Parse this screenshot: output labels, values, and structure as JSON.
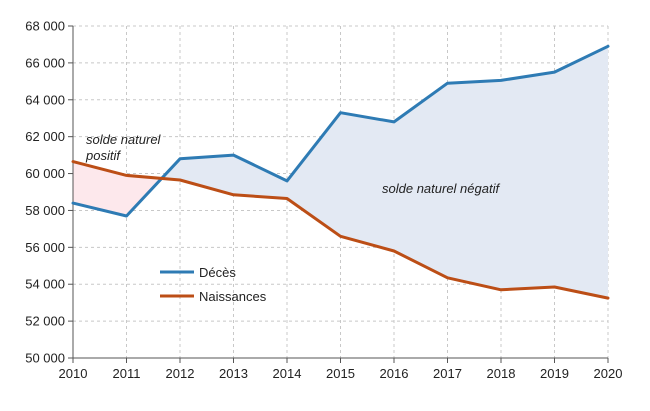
{
  "chart_data": {
    "type": "line",
    "x": [
      2010,
      2011,
      2012,
      2013,
      2014,
      2015,
      2016,
      2017,
      2018,
      2019,
      2020
    ],
    "series": [
      {
        "name": "Décès",
        "color": "#2e7bb4",
        "values": [
          58400,
          57700,
          60800,
          61000,
          59600,
          63300,
          62800,
          64900,
          65050,
          65500,
          66900
        ]
      },
      {
        "name": "Naissances",
        "color": "#bc4e16",
        "values": [
          60650,
          59900,
          59650,
          58850,
          58650,
          56600,
          55800,
          54350,
          53700,
          53850,
          53250
        ]
      }
    ],
    "yticks": [
      "50 000",
      "52 000",
      "54 000",
      "56 000",
      "58 000",
      "60 000",
      "62 000",
      "64 000",
      "66 000",
      "68 000"
    ],
    "xticks": [
      "2010",
      "2011",
      "2012",
      "2013",
      "2014",
      "2015",
      "2016",
      "2017",
      "2018",
      "2019",
      "2020"
    ],
    "ylim": [
      50000,
      68000
    ],
    "xlim": [
      2010,
      2020
    ],
    "grid": "horizontal dashed",
    "legend_position": "bottom-left",
    "fill_positive_color": "#fde8ec",
    "fill_negative_color": "#e3e9f3",
    "annotations": {
      "positive_line1": "solde naturel",
      "positive_line2": "positif",
      "negative": "solde naturel négatif"
    }
  }
}
